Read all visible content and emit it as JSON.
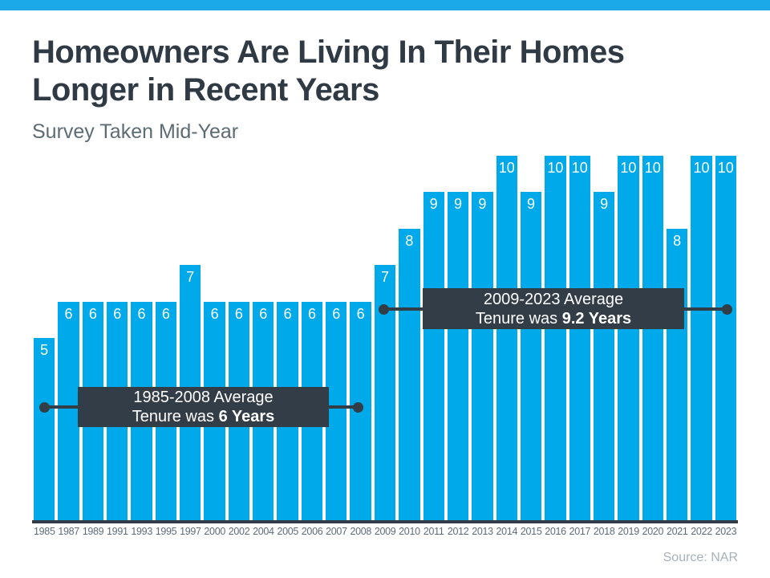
{
  "header": {
    "title_line1": "Homeowners Are Living In Their Homes",
    "title_line2": "Longer in Recent Years",
    "subtitle": "Survey Taken Mid-Year"
  },
  "footer": {
    "source": "Source: NAR"
  },
  "colors": {
    "top_strip_blue": "#1CA9E9",
    "bar_blue": "#00A9E9",
    "callout_dark_slate": "#333D47",
    "title_text": "#2F3A44",
    "subtitle_text": "#5C6B74",
    "axis_label_text": "#5D6B78",
    "source_text": "#A8B2BA",
    "bar_value_text": "#FFFFFF"
  },
  "chart_data": {
    "type": "bar",
    "title": "Homeowners Are Living In Their Homes Longer in Recent Years",
    "subtitle": "Survey Taken Mid-Year",
    "categories": [
      "1985",
      "1987",
      "1989",
      "1991",
      "1993",
      "1995",
      "1997",
      "2000",
      "2002",
      "2004",
      "2005",
      "2006",
      "2007",
      "2008",
      "2009",
      "2010",
      "2011",
      "2012",
      "2013",
      "2014",
      "2015",
      "2016",
      "2017",
      "2018",
      "2019",
      "2020",
      "2021",
      "2022",
      "2023"
    ],
    "values": [
      5,
      6,
      6,
      6,
      6,
      6,
      7,
      6,
      6,
      6,
      6,
      6,
      6,
      6,
      7,
      8,
      9,
      9,
      9,
      10,
      9,
      10,
      10,
      9,
      10,
      10,
      8,
      10,
      10
    ],
    "xlabel": "",
    "ylabel": "",
    "ylim": [
      0,
      10
    ],
    "grid": false,
    "legend": false,
    "value_labels_position": "inside-top",
    "annotations": [
      {
        "line1": "1985-2008 Average",
        "line2_normal": "Tenure was ",
        "line2_bold": "6 Years",
        "span_start": "1985",
        "span_end": "2008"
      },
      {
        "line1": "2009-2023 Average",
        "line2_normal": "Tenure was ",
        "line2_bold": "9.2 Years",
        "span_start": "2009",
        "span_end": "2023"
      }
    ],
    "source": "Source: NAR"
  }
}
